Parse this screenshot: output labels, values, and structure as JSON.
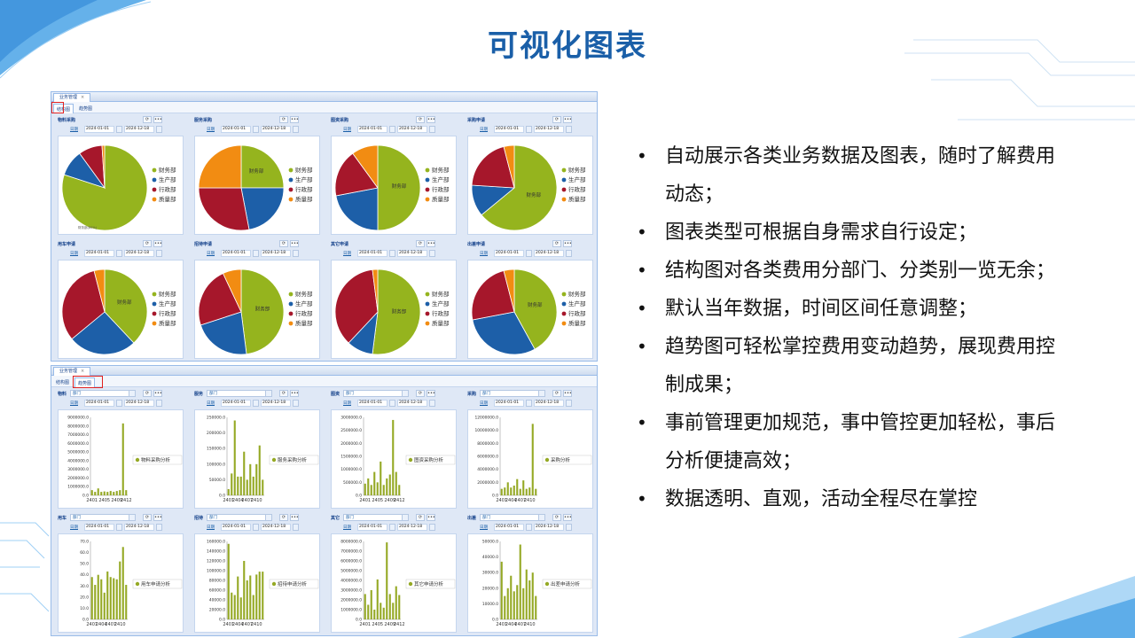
{
  "slide": {
    "title": "可视化图表"
  },
  "colors": {
    "finance": "#95b41e",
    "production": "#1d5fa8",
    "admin": "#a6172b",
    "quality": "#f28c12",
    "bar": "#95a925"
  },
  "pie_screen": {
    "app_tab": "业务管理",
    "view_tabs": [
      "结构图",
      "趋势图"
    ],
    "active_view": "结构图",
    "date_label": "日期",
    "start_date": "2024-01-01",
    "end_date": "2024-12-18",
    "refresh_icon": "refresh-icon",
    "more_label": "•••"
  },
  "bar_screen": {
    "app_tab": "业务管理",
    "view_tabs": [
      "结构图",
      "趋势图"
    ],
    "active_view": "趋势图",
    "dept_label": "部门",
    "date_label": "日期",
    "start_date": "2024-01-01",
    "end_date": "2024-12-18",
    "more_label": "•••"
  },
  "chart_data": [
    {
      "type": "pie",
      "title": "物料采购",
      "legend": [
        "财务部",
        "生产部",
        "行政部",
        "质量部"
      ],
      "values": [
        80,
        10,
        9,
        1
      ],
      "slice_labels": [
        "",
        "",
        "",
        ""
      ],
      "corner_label": "财务部(80%)"
    },
    {
      "type": "pie",
      "title": "服务采购",
      "legend": [
        "财务部",
        "生产部",
        "行政部",
        "质量部"
      ],
      "values": [
        25,
        22,
        28,
        25
      ],
      "slice_labels": [
        "财务部",
        "",
        "",
        ""
      ]
    },
    {
      "type": "pie",
      "title": "图资采购",
      "legend": [
        "财务部",
        "生产部",
        "行政部",
        "质量部"
      ],
      "values": [
        50,
        22,
        18,
        10
      ],
      "slice_labels": [
        "财务部",
        "",
        "",
        ""
      ]
    },
    {
      "type": "pie",
      "title": "采购申请",
      "legend": [
        "财务部",
        "生产部",
        "行政部",
        "质量部"
      ],
      "values": [
        64,
        12,
        20,
        4
      ],
      "slice_labels": [
        "财务部",
        "",
        "",
        ""
      ]
    },
    {
      "type": "pie",
      "title": "用车申请",
      "legend": [
        "财务部",
        "生产部",
        "行政部",
        "质量部"
      ],
      "values": [
        38,
        26,
        32,
        4
      ],
      "slice_labels": [
        "财务部",
        "",
        "",
        ""
      ]
    },
    {
      "type": "pie",
      "title": "招待申请",
      "legend": [
        "财务部",
        "生产部",
        "行政部",
        "质量部"
      ],
      "values": [
        48,
        22,
        23,
        7
      ],
      "slice_labels": [
        "财务部",
        "",
        "",
        ""
      ]
    },
    {
      "type": "pie",
      "title": "其它申请",
      "legend": [
        "财务部",
        "生产部",
        "行政部",
        "质量部"
      ],
      "values": [
        52,
        10,
        36,
        2
      ],
      "slice_labels": [
        "财务部",
        "",
        "",
        ""
      ]
    },
    {
      "type": "pie",
      "title": "出差申请",
      "legend": [
        "财务部",
        "生产部",
        "行政部",
        "质量部"
      ],
      "values": [
        42,
        30,
        24,
        4
      ],
      "slice_labels": [
        "财务部",
        "",
        "",
        ""
      ]
    },
    {
      "type": "bar",
      "title": "物料",
      "legend": "物料采购分析",
      "x": [
        "2401",
        "",
        "",
        "",
        "2405",
        "",
        "",
        "",
        "2409",
        "",
        "",
        "2412"
      ],
      "x_ticks": [
        "2401",
        "2405",
        "2409",
        "2412"
      ],
      "values": [
        600000,
        400000,
        800000,
        400000,
        450000,
        400000,
        500000,
        400000,
        500000,
        600000,
        8300000,
        600000
      ],
      "ylim": [
        0,
        9000000
      ],
      "y_ticks": [
        "0.0",
        "1000000.0",
        "2000000.0",
        "3000000.0",
        "4000000.0",
        "5000000.0",
        "6000000.0",
        "7000000.0",
        "8000000.0",
        "9000000.0"
      ]
    },
    {
      "type": "bar",
      "title": "服务",
      "legend": "服务采购分析",
      "x": [
        "2401",
        "",
        "",
        "2404",
        "",
        "",
        "2407",
        "",
        "",
        "2410",
        "",
        ""
      ],
      "x_ticks": [
        "2401",
        "2404",
        "2407",
        "2410"
      ],
      "values": [
        20000,
        70000,
        240000,
        60000,
        60000,
        140000,
        50000,
        100000,
        60000,
        100000,
        160000,
        50000
      ],
      "ylim": [
        0,
        250000
      ],
      "y_ticks": [
        "0.0",
        "50000.0",
        "100000.0",
        "150000.0",
        "200000.0",
        "250000.0"
      ]
    },
    {
      "type": "bar",
      "title": "图资",
      "legend": "图资采购分析",
      "x": [
        "2401",
        "",
        "",
        "",
        "2405",
        "",
        "",
        "",
        "2409",
        "",
        "",
        "2412"
      ],
      "x_ticks": [
        "2401",
        "2405",
        "2409",
        "2412"
      ],
      "values": [
        450000,
        650000,
        400000,
        900000,
        500000,
        1300000,
        400000,
        650000,
        800000,
        2900000,
        900000,
        400000
      ],
      "ylim": [
        0,
        3000000
      ],
      "y_ticks": [
        "0.0",
        "500000.0",
        "1000000.0",
        "1500000.0",
        "2000000.0",
        "2500000.0",
        "3000000.0"
      ]
    },
    {
      "type": "bar",
      "title": "采购",
      "legend": "采购分析",
      "x": [
        "2401",
        "",
        "",
        "2404",
        "",
        "",
        "2407",
        "",
        "",
        "2410",
        "",
        ""
      ],
      "x_ticks": [
        "2401",
        "2404",
        "2407",
        "2410"
      ],
      "values": [
        1000000,
        1200000,
        2000000,
        1200000,
        1500000,
        2500000,
        1000000,
        2300000,
        1000000,
        1200000,
        11000000,
        1000000
      ],
      "ylim": [
        0,
        12000000
      ],
      "y_ticks": [
        "0.0",
        "2000000.0",
        "4000000.0",
        "6000000.0",
        "8000000.0",
        "10000000.0",
        "12000000.0"
      ]
    },
    {
      "type": "bar",
      "title": "用车",
      "legend": "用车申请分析",
      "x": [
        "2401",
        "",
        "",
        "2404",
        "",
        "",
        "2407",
        "",
        "",
        "2410",
        "",
        ""
      ],
      "x_ticks": [
        "2401",
        "2404",
        "2407",
        "2410"
      ],
      "values": [
        38,
        31,
        40,
        36,
        24,
        43,
        38,
        37,
        36,
        52,
        65,
        31
      ],
      "ylim": [
        0,
        70
      ],
      "y_ticks": [
        "0.0",
        "10.0",
        "20.0",
        "30.0",
        "40.0",
        "50.0",
        "60.0",
        "70.0"
      ]
    },
    {
      "type": "bar",
      "title": "招待",
      "legend": "招待申请分析",
      "x": [
        "2401",
        "",
        "",
        "2404",
        "",
        "",
        "2407",
        "",
        "",
        "2410",
        "",
        ""
      ],
      "x_ticks": [
        "2401",
        "2404",
        "2407",
        "2410"
      ],
      "values": [
        155000,
        55000,
        50000,
        88000,
        45000,
        120000,
        80000,
        90000,
        50000,
        92000,
        98000,
        98000
      ],
      "ylim": [
        0,
        160000
      ],
      "y_ticks": [
        "0.0",
        "20000.0",
        "40000.0",
        "60000.0",
        "80000.0",
        "100000.0",
        "120000.0",
        "140000.0",
        "160000.0"
      ]
    },
    {
      "type": "bar",
      "title": "其它",
      "legend": "其它申请分析",
      "x": [
        "2401",
        "",
        "",
        "",
        "2405",
        "",
        "",
        "",
        "2409",
        "",
        "",
        "2412"
      ],
      "x_ticks": [
        "2401",
        "2405",
        "2409",
        "2412"
      ],
      "values": [
        2600000,
        1500000,
        3000000,
        1000000,
        4100000,
        1700000,
        1200000,
        7900000,
        2600000,
        1700000,
        3400000,
        2500000
      ],
      "ylim": [
        0,
        8000000
      ],
      "y_ticks": [
        "0.0",
        "1000000.0",
        "2000000.0",
        "3000000.0",
        "4000000.0",
        "5000000.0",
        "6000000.0",
        "7000000.0",
        "8000000.0"
      ]
    },
    {
      "type": "bar",
      "title": "出差",
      "legend": "出差申请分析",
      "x": [
        "2401",
        "",
        "",
        "2404",
        "",
        "",
        "2407",
        "",
        "",
        "2410",
        "",
        ""
      ],
      "x_ticks": [
        "2401",
        "2404",
        "2407",
        "2410"
      ],
      "values": [
        37000,
        15000,
        20000,
        28000,
        18000,
        22000,
        48000,
        20000,
        32000,
        25000,
        30000,
        15000
      ],
      "ylim": [
        0,
        50000
      ],
      "y_ticks": [
        "0.0",
        "10000.0",
        "20000.0",
        "30000.0",
        "40000.0",
        "50000.0"
      ]
    }
  ],
  "bullets": [
    "自动展示各类业务数据及图表，随时了解费用动态；",
    "图表类型可根据自身需求自行设定；",
    "结构图对各类费用分部门、分类别一览无余；",
    "默认当年数据，时间区间任意调整；",
    "趋势图可轻松掌控费用变动趋势，展现费用控制成果；",
    "事前管理更加规范，事中管控更加轻松，事后分析便捷高效；",
    "数据透明、直观，活动全程尽在掌控"
  ]
}
